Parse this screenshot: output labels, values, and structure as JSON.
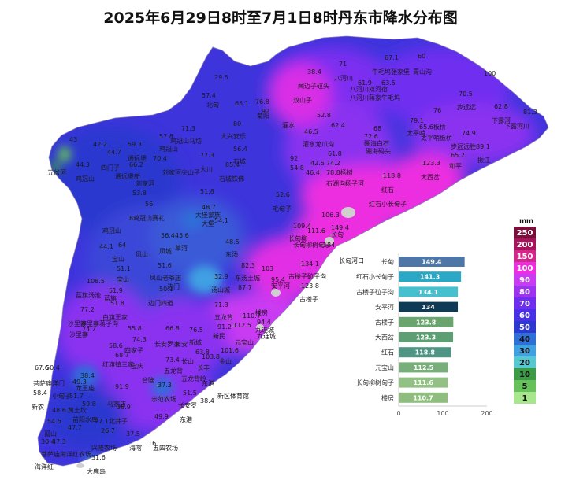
{
  "title": "2025年6月29日8时至7月1日8时丹东市降水分布图",
  "legend": {
    "unit": "mm",
    "classes": [
      {
        "label": "250",
        "color": "#7a0f3a"
      },
      {
        "label": "200",
        "color": "#a8145c"
      },
      {
        "label": "150",
        "color": "#d2278a"
      },
      {
        "label": "100",
        "color": "#ec2ee0"
      },
      {
        "label": "90",
        "color": "#c93af2"
      },
      {
        "label": "80",
        "color": "#9d32f0"
      },
      {
        "label": "70",
        "color": "#6f2df0"
      },
      {
        "label": "60",
        "color": "#4730e8"
      },
      {
        "label": "50",
        "color": "#2c38cf"
      },
      {
        "label": "40",
        "color": "#2f6fd8"
      },
      {
        "label": "30",
        "color": "#3fa0e2"
      },
      {
        "label": "20",
        "color": "#55c8d2"
      },
      {
        "label": "10",
        "color": "#3d9b47"
      },
      {
        "label": "5",
        "color": "#67c15a"
      },
      {
        "label": "1",
        "color": "#a8e68e"
      }
    ]
  },
  "chart_data": {
    "type": "bar",
    "orientation": "horizontal",
    "categories": [
      "长甸",
      "红石小长甸子",
      "古楼子砬子沟",
      "安平河",
      "古楼子",
      "大西岔",
      "红石",
      "元宝山",
      "长甸柳树甸子",
      "楼房"
    ],
    "values": [
      149.4,
      141.3,
      134.1,
      134,
      123.8,
      123.3,
      118.8,
      112.5,
      111.6,
      110.7
    ],
    "value_labels": [
      "149.4",
      "141.3",
      "134.1",
      "134",
      "123.8",
      "123.3",
      "118.8",
      "112.5",
      "111.6",
      "110.7"
    ],
    "bar_colors": [
      "#4e76a6",
      "#2aa8c5",
      "#45c0cf",
      "#0e3a55",
      "#6aa56f",
      "#5e9e73",
      "#4e9584",
      "#78ae7a",
      "#93c084",
      "#8fbd80"
    ],
    "xlim": [
      0,
      200
    ],
    "xticks": [
      "0",
      "100",
      "200"
    ],
    "grid": false
  },
  "map": {
    "stations": [
      {
        "name": "五岔河",
        "value": "43",
        "color": "#3a67d6"
      },
      {
        "name": "东港",
        "value": "38.4",
        "color": "#2f6fd8"
      },
      {
        "name": "长甸",
        "value": "149.4",
        "color": "#d2278a"
      },
      {
        "name": "宽甸",
        "value": "97",
        "color": "#c93af2"
      },
      {
        "name": "凤城",
        "value": "56.4",
        "color": "#4730e8"
      },
      {
        "name": "大台子",
        "value": "94.4",
        "color": "#c93af2"
      },
      {
        "name": "新民",
        "value": "91.2",
        "color": "#c93af2"
      },
      {
        "name": "青山沟",
        "value": "67.1",
        "color": "#6f2df0"
      },
      {
        "name": "红石",
        "value": "118.8",
        "color": "#ec2ee0"
      },
      {
        "name": "大西岔",
        "value": "123.3",
        "color": "#ec2ee0"
      },
      {
        "name": "古楼子",
        "value": "123.8",
        "color": "#ec2ee0"
      },
      {
        "name": "元宝山",
        "value": "112.5",
        "color": "#ec2ee0"
      },
      {
        "name": "石城",
        "value": "52.6",
        "color": "#4730e8"
      },
      {
        "name": "汤山城",
        "value": "32.9",
        "color": "#3fa0e2"
      },
      {
        "name": "步达远",
        "value": "76",
        "color": "#6f2df0"
      },
      {
        "name": "振江",
        "value": "65.2",
        "color": "#4730e8"
      },
      {
        "name": "海洋红",
        "value": "47.3",
        "color": "#2f6fd8"
      },
      {
        "name": "大鹿岛",
        "value": "31.6",
        "color": "#3fa0e2"
      },
      {
        "name": "椅圈",
        "value": "59.3",
        "color": "#4730e8"
      },
      {
        "name": "黄土坎",
        "value": "48.6",
        "color": "#2f6fd8"
      }
    ],
    "extra_labels": [
      {
        "text": "牛毛坞",
        "color": "#6f2df0"
      },
      {
        "text": "八河川",
        "color": "#9d32f0"
      },
      {
        "text": "下露河",
        "color": "#6f2df0"
      },
      {
        "text": "太平哨",
        "color": "#9d32f0"
      },
      {
        "text": "灌水",
        "color": "#9d32f0"
      },
      {
        "text": "双山子",
        "color": "#9d32f0"
      },
      {
        "text": "大川",
        "color": "#4730e8"
      },
      {
        "text": "鸡冠山",
        "color": "#2c38cf"
      },
      {
        "text": "宝山",
        "color": "#4730e8"
      },
      {
        "text": "沙里寨",
        "color": "#9d32f0"
      },
      {
        "text": "前阳",
        "color": "#4730e8"
      },
      {
        "text": "马家店",
        "color": "#4730e8"
      },
      {
        "text": "边门",
        "color": "#4730e8"
      },
      {
        "text": "五龙背",
        "color": "#6f2df0"
      },
      {
        "text": "九连城",
        "color": "#6f2df0"
      },
      {
        "text": "楼房",
        "color": "#ec2ee0"
      },
      {
        "text": "安平河",
        "color": "#ec2ee0"
      },
      {
        "text": "长甸河口",
        "color": "#d2278a"
      },
      {
        "text": "红石小长甸子",
        "color": "#d2278a"
      },
      {
        "text": "北甸",
        "color": "#4730e8"
      },
      {
        "text": "孤山",
        "color": "#2f6fd8"
      },
      {
        "text": "十字街",
        "color": "#4730e8"
      }
    ]
  }
}
